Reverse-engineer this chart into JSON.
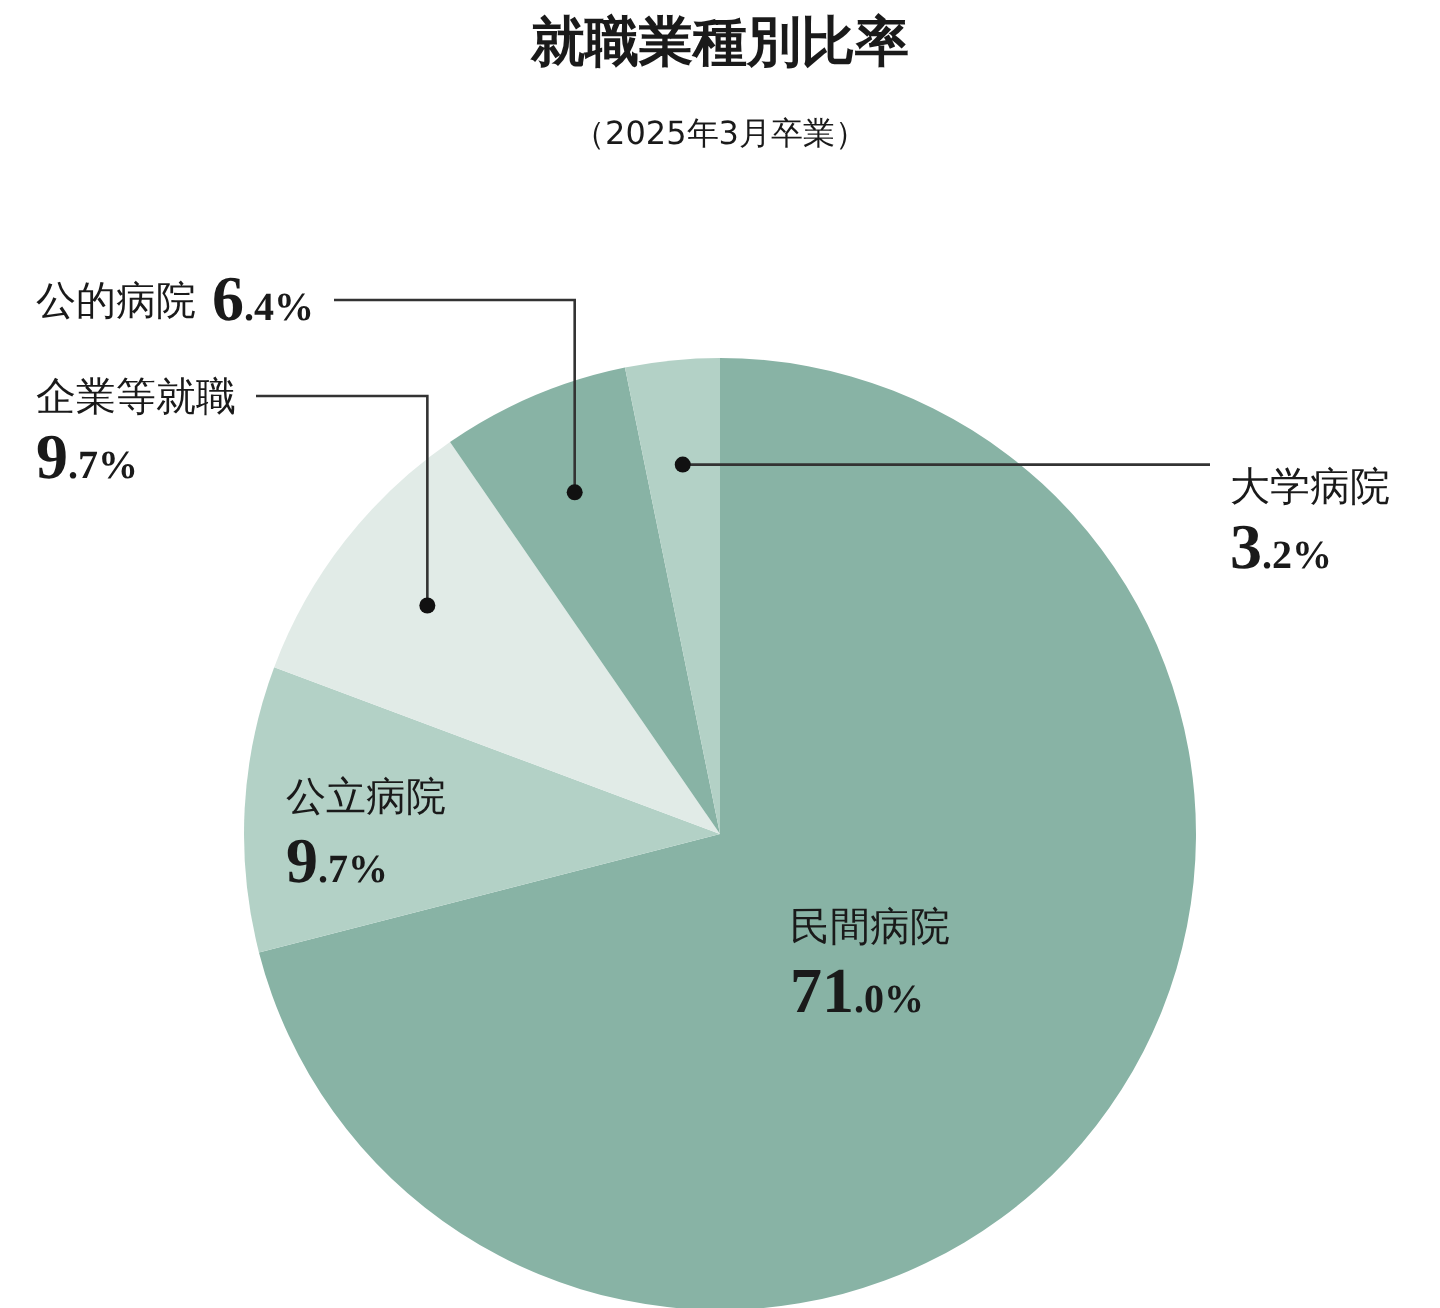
{
  "chart_data": {
    "type": "pie",
    "title": "就職業種別比率",
    "subtitle": "（2025年3月卒業）",
    "categories": [
      "民間病院",
      "公立病院",
      "企業等就職",
      "公的病院",
      "大学病院"
    ],
    "values": [
      71.0,
      9.7,
      9.7,
      6.4,
      3.2
    ],
    "value_labels": [
      "71.0%",
      "9.7%",
      "9.7%",
      "6.4%",
      "3.2%"
    ],
    "colors": [
      "#88b3a5",
      "#b3d1c6",
      "#e1ebe7",
      "#88b3a5",
      "#b3d1c6"
    ]
  }
}
